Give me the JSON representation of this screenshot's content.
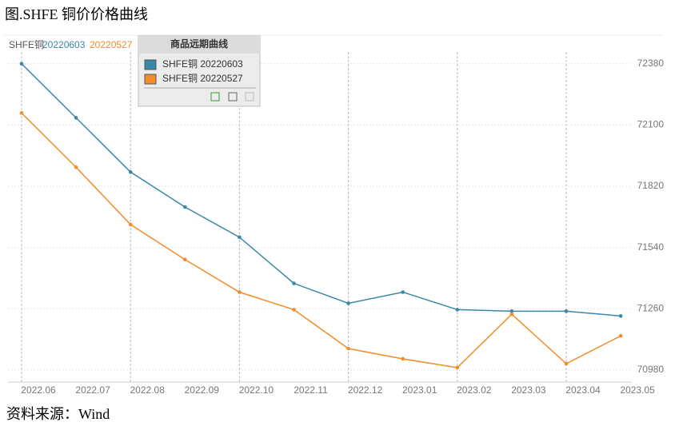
{
  "title": "图.SHFE 铜价价格曲线",
  "source": "资料来源：Wind",
  "chart_data": {
    "type": "line",
    "header": {
      "prefix": "SHFE铜",
      "items": [
        "20220603",
        "20220527"
      ]
    },
    "legend_title": "商品远期曲线",
    "categories": [
      "2022.06",
      "2022.07",
      "2022.08",
      "2022.09",
      "2022.10",
      "2022.11",
      "2022.12",
      "2023.01",
      "2023.02",
      "2023.03",
      "2023.04",
      "2023.05"
    ],
    "series": [
      {
        "name": "SHFE铜 20220603",
        "color": "#3a87a8",
        "values": [
          72380,
          72133,
          71885,
          71725,
          71587,
          71376,
          71285,
          71336,
          71256,
          71249,
          71249,
          71227
        ]
      },
      {
        "name": "SHFE铜 20220527",
        "color": "#f28c28",
        "values": [
          72155,
          71907,
          71645,
          71485,
          71336,
          71256,
          71078,
          71031,
          70991,
          71235,
          71009,
          71136
        ]
      }
    ],
    "ylim": [
      70925,
      72507
    ],
    "yticks": [
      70980,
      71260,
      71540,
      71820,
      72100,
      72380
    ],
    "grid": true
  }
}
